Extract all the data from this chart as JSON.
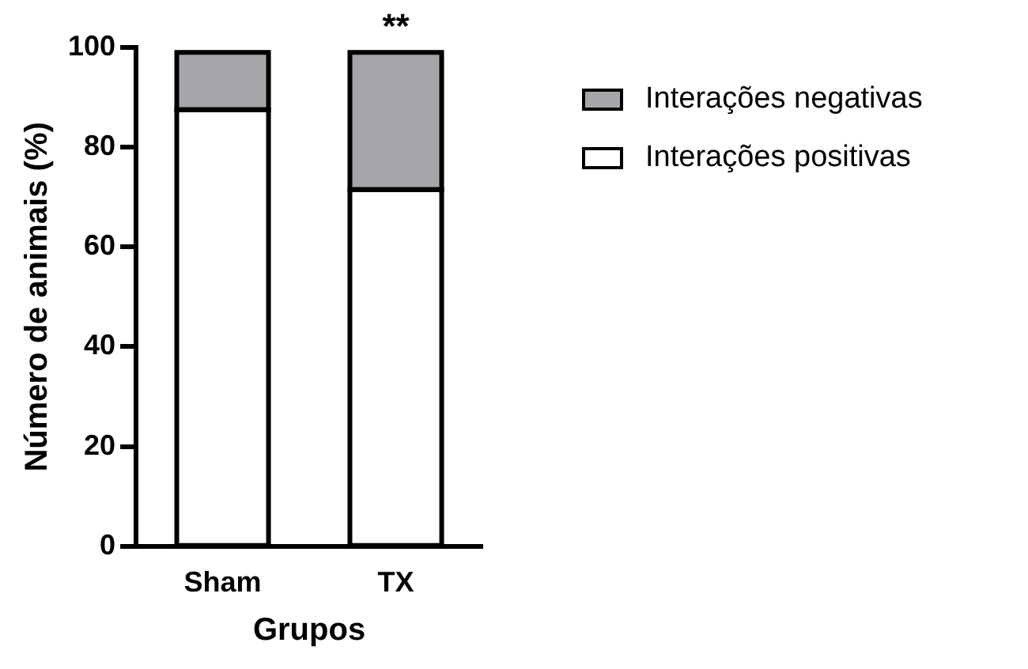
{
  "chart_data": {
    "type": "bar",
    "stacked": true,
    "xlabel": "Grupos",
    "ylabel": "Número de animais (%)",
    "categories": [
      "Sham",
      "TX"
    ],
    "series": [
      {
        "name": "Interações positivas",
        "color": "#ffffff",
        "values": [
          87.5,
          71.5
        ]
      },
      {
        "name": "Interações negativas",
        "color": "#a6a6aa",
        "values": [
          11.5,
          27.5
        ]
      }
    ],
    "ylim": [
      0,
      100
    ],
    "yticks": [
      0,
      20,
      40,
      60,
      80,
      100
    ],
    "grid": false,
    "legend": "top right",
    "annotations": [
      {
        "text": "**",
        "x": "TX",
        "y": 99
      }
    ]
  }
}
